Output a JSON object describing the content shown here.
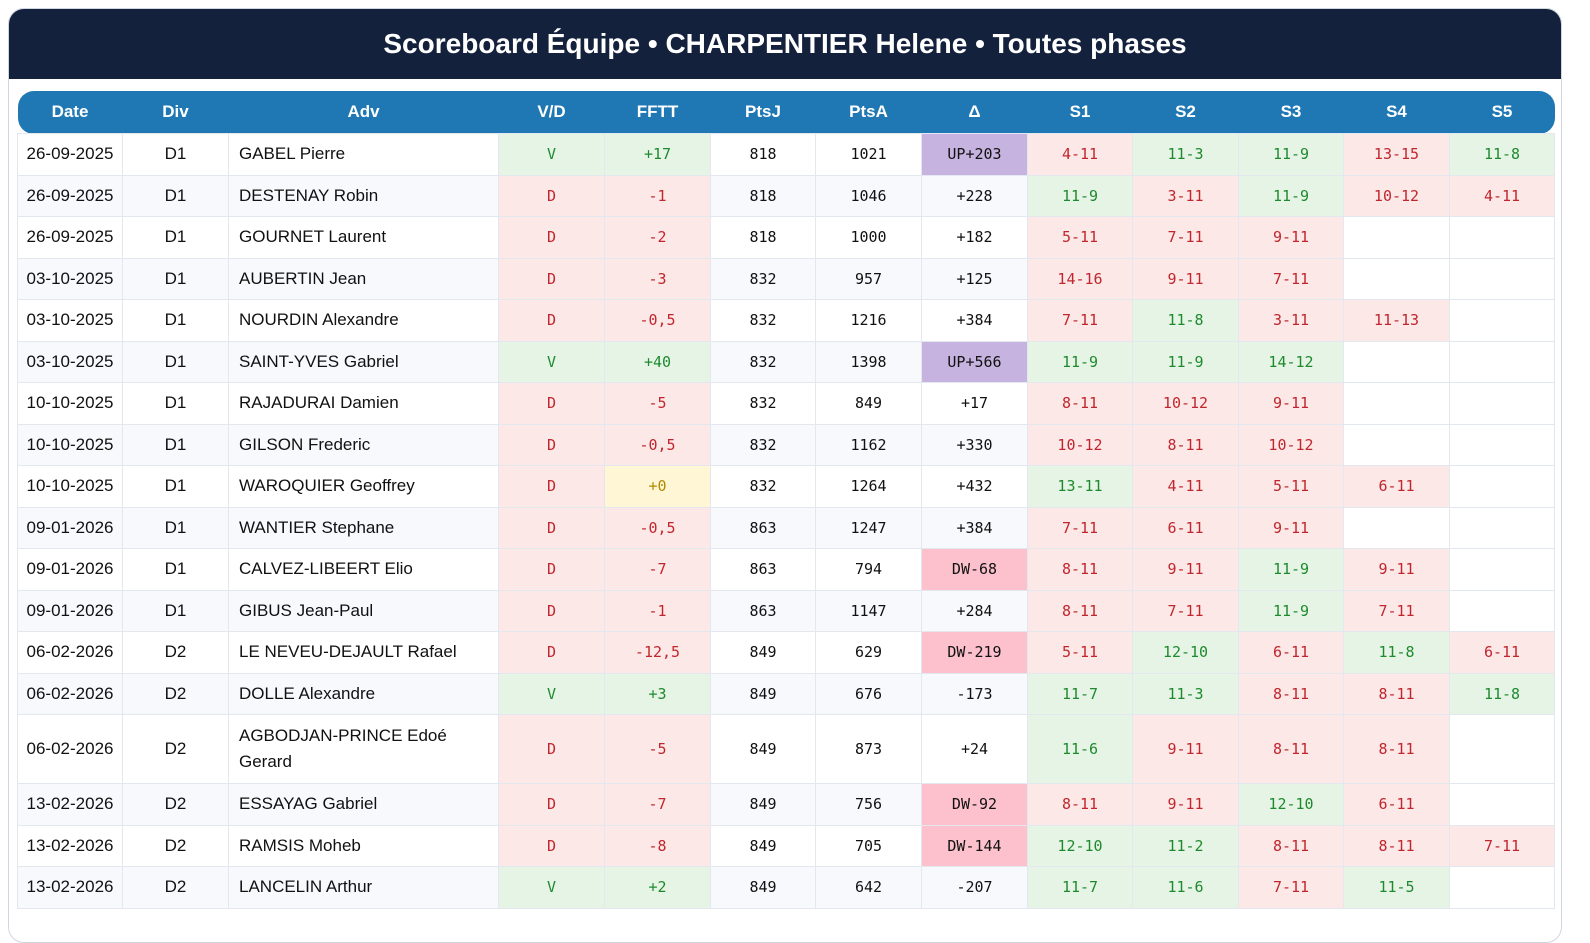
{
  "title": "Scoreboard Équipe • CHARPENTIER Helene • Toutes phases",
  "columns": [
    "Date",
    "Div",
    "Adv",
    "V/D",
    "FFTT",
    "PtsJ",
    "PtsA",
    "Δ",
    "S1",
    "S2",
    "S3",
    "S4",
    "S5"
  ],
  "colors": {
    "header": "#14213d",
    "table_header": "#1f78b4",
    "win_bg": "#e6f4e6",
    "loss_bg": "#fde8e8",
    "up_bg": "#c6b3e0",
    "dw_bg": "#fcc1cc",
    "neutral_bg": "#fff6d6"
  },
  "rows": [
    {
      "date": "26-09-2025",
      "div": "D1",
      "adv": "GABEL Pierre",
      "vd": "V",
      "fftt": "+17",
      "ptsj": "818",
      "ptsa": "1021",
      "delta": "UP+203",
      "sets": [
        "4-11",
        "11-3",
        "11-9",
        "13-15",
        "11-8"
      ]
    },
    {
      "date": "26-09-2025",
      "div": "D1",
      "adv": "DESTENAY Robin",
      "vd": "D",
      "fftt": "-1",
      "ptsj": "818",
      "ptsa": "1046",
      "delta": "+228",
      "sets": [
        "11-9",
        "3-11",
        "11-9",
        "10-12",
        "4-11"
      ]
    },
    {
      "date": "26-09-2025",
      "div": "D1",
      "adv": "GOURNET Laurent",
      "vd": "D",
      "fftt": "-2",
      "ptsj": "818",
      "ptsa": "1000",
      "delta": "+182",
      "sets": [
        "5-11",
        "7-11",
        "9-11",
        "",
        ""
      ]
    },
    {
      "date": "03-10-2025",
      "div": "D1",
      "adv": "AUBERTIN Jean",
      "vd": "D",
      "fftt": "-3",
      "ptsj": "832",
      "ptsa": "957",
      "delta": "+125",
      "sets": [
        "14-16",
        "9-11",
        "7-11",
        "",
        ""
      ]
    },
    {
      "date": "03-10-2025",
      "div": "D1",
      "adv": "NOURDIN Alexandre",
      "vd": "D",
      "fftt": "-0,5",
      "ptsj": "832",
      "ptsa": "1216",
      "delta": "+384",
      "sets": [
        "7-11",
        "11-8",
        "3-11",
        "11-13",
        ""
      ]
    },
    {
      "date": "03-10-2025",
      "div": "D1",
      "adv": "SAINT-YVES Gabriel",
      "vd": "V",
      "fftt": "+40",
      "ptsj": "832",
      "ptsa": "1398",
      "delta": "UP+566",
      "sets": [
        "11-9",
        "11-9",
        "14-12",
        "",
        ""
      ]
    },
    {
      "date": "10-10-2025",
      "div": "D1",
      "adv": "RAJADURAI Damien",
      "vd": "D",
      "fftt": "-5",
      "ptsj": "832",
      "ptsa": "849",
      "delta": "+17",
      "sets": [
        "8-11",
        "10-12",
        "9-11",
        "",
        ""
      ]
    },
    {
      "date": "10-10-2025",
      "div": "D1",
      "adv": "GILSON Frederic",
      "vd": "D",
      "fftt": "-0,5",
      "ptsj": "832",
      "ptsa": "1162",
      "delta": "+330",
      "sets": [
        "10-12",
        "8-11",
        "10-12",
        "",
        ""
      ]
    },
    {
      "date": "10-10-2025",
      "div": "D1",
      "adv": "WAROQUIER Geoffrey",
      "vd": "D",
      "fftt": "+0",
      "ptsj": "832",
      "ptsa": "1264",
      "delta": "+432",
      "sets": [
        "13-11",
        "4-11",
        "5-11",
        "6-11",
        ""
      ]
    },
    {
      "date": "09-01-2026",
      "div": "D1",
      "adv": "WANTIER Stephane",
      "vd": "D",
      "fftt": "-0,5",
      "ptsj": "863",
      "ptsa": "1247",
      "delta": "+384",
      "sets": [
        "7-11",
        "6-11",
        "9-11",
        "",
        ""
      ]
    },
    {
      "date": "09-01-2026",
      "div": "D1",
      "adv": "CALVEZ-LIBEERT Elio",
      "vd": "D",
      "fftt": "-7",
      "ptsj": "863",
      "ptsa": "794",
      "delta": "DW-68",
      "sets": [
        "8-11",
        "9-11",
        "11-9",
        "9-11",
        ""
      ]
    },
    {
      "date": "09-01-2026",
      "div": "D1",
      "adv": "GIBUS Jean-Paul",
      "vd": "D",
      "fftt": "-1",
      "ptsj": "863",
      "ptsa": "1147",
      "delta": "+284",
      "sets": [
        "8-11",
        "7-11",
        "11-9",
        "7-11",
        ""
      ]
    },
    {
      "date": "06-02-2026",
      "div": "D2",
      "adv": "LE NEVEU-DEJAULT Rafael",
      "vd": "D",
      "fftt": "-12,5",
      "ptsj": "849",
      "ptsa": "629",
      "delta": "DW-219",
      "sets": [
        "5-11",
        "12-10",
        "6-11",
        "11-8",
        "6-11"
      ]
    },
    {
      "date": "06-02-2026",
      "div": "D2",
      "adv": "DOLLE Alexandre",
      "vd": "V",
      "fftt": "+3",
      "ptsj": "849",
      "ptsa": "676",
      "delta": "-173",
      "sets": [
        "11-7",
        "11-3",
        "8-11",
        "8-11",
        "11-8"
      ]
    },
    {
      "date": "06-02-2026",
      "div": "D2",
      "adv": "AGBODJAN-PRINCE Edoé Gerard",
      "vd": "D",
      "fftt": "-5",
      "ptsj": "849",
      "ptsa": "873",
      "delta": "+24",
      "sets": [
        "11-6",
        "9-11",
        "8-11",
        "8-11",
        ""
      ]
    },
    {
      "date": "13-02-2026",
      "div": "D2",
      "adv": "ESSAYAG Gabriel",
      "vd": "D",
      "fftt": "-7",
      "ptsj": "849",
      "ptsa": "756",
      "delta": "DW-92",
      "sets": [
        "8-11",
        "9-11",
        "12-10",
        "6-11",
        ""
      ]
    },
    {
      "date": "13-02-2026",
      "div": "D2",
      "adv": "RAMSIS Moheb",
      "vd": "D",
      "fftt": "-8",
      "ptsj": "849",
      "ptsa": "705",
      "delta": "DW-144",
      "sets": [
        "12-10",
        "11-2",
        "8-11",
        "8-11",
        "7-11"
      ]
    },
    {
      "date": "13-02-2026",
      "div": "D2",
      "adv": "LANCELIN Arthur",
      "vd": "V",
      "fftt": "+2",
      "ptsj": "849",
      "ptsa": "642",
      "delta": "-207",
      "sets": [
        "11-7",
        "11-6",
        "7-11",
        "11-5",
        ""
      ]
    }
  ]
}
